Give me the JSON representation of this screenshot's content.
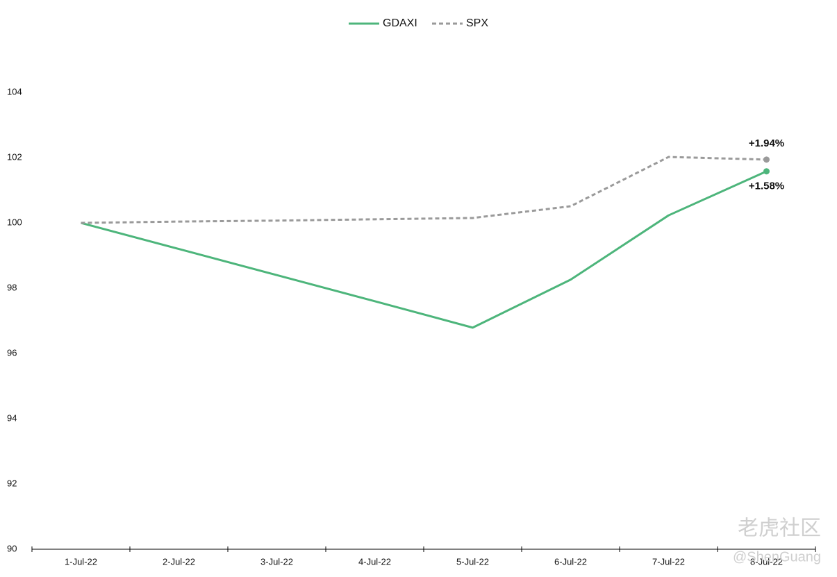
{
  "chart_data": {
    "type": "line",
    "categories": [
      "1-Jul-22",
      "2-Jul-22",
      "3-Jul-22",
      "4-Jul-22",
      "5-Jul-22",
      "6-Jul-22",
      "7-Jul-22",
      "8-Jul-22"
    ],
    "series": [
      {
        "name": "GDAXI",
        "color": "#4db57b",
        "dashed": false,
        "values": [
          100,
          99.2,
          98.4,
          97.6,
          96.79,
          98.26,
          100.23,
          101.58
        ]
      },
      {
        "name": "SPX",
        "color": "#9a9a9a",
        "dashed": true,
        "values": [
          100,
          100.04,
          100.07,
          100.11,
          100.15,
          100.51,
          102.02,
          101.94
        ]
      }
    ],
    "annotations": [
      {
        "series": 1,
        "text": "+1.94%",
        "position": "above"
      },
      {
        "series": 0,
        "text": "+1.58%",
        "position": "below"
      }
    ],
    "ylim": [
      90,
      104
    ],
    "yticks": [
      90,
      92,
      94,
      96,
      98,
      100,
      102,
      104
    ],
    "grid": false,
    "legend": "top",
    "watermark": [
      "老虎社区",
      "@ShenGuang"
    ]
  }
}
